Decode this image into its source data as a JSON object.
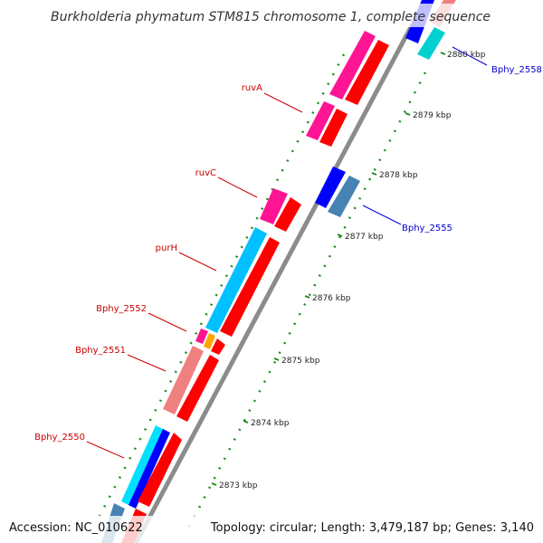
{
  "header": {
    "title": "Burkholderia phymatum STM815 chromosome 1, complete sequence"
  },
  "footer": {
    "accession": "Accession: NC_010622",
    "topology": "Topology: circular; Length: 3,479,187 bp; Genes: 3,140"
  },
  "ruler": {
    "ticks": [
      "2873 kbp",
      "2874 kbp",
      "2875 kbp",
      "2876 kbp",
      "2877 kbp",
      "2878 kbp",
      "2879 kbp",
      "2880 kbp"
    ]
  },
  "gene_labels": {
    "left": [
      "ruvA",
      "ruvC",
      "purH",
      "Bphy_2552",
      "Bphy_2551",
      "Bphy_2550"
    ],
    "right": [
      "Bphy_2558",
      "Bphy_2555"
    ]
  },
  "colors": {
    "backbone": "#9a9a9a",
    "cds_red": "#ff0000",
    "magenta": "#ff1493",
    "cyan": "#00c0ff",
    "salmon": "#f08080",
    "blue": "#0000ff",
    "steelblue": "#4682b4",
    "turquoise": "#00e0d0",
    "orange": "#ffa500",
    "tick_green": "#228b22",
    "label_red": "#cc0000",
    "label_blue": "#0000cc"
  }
}
